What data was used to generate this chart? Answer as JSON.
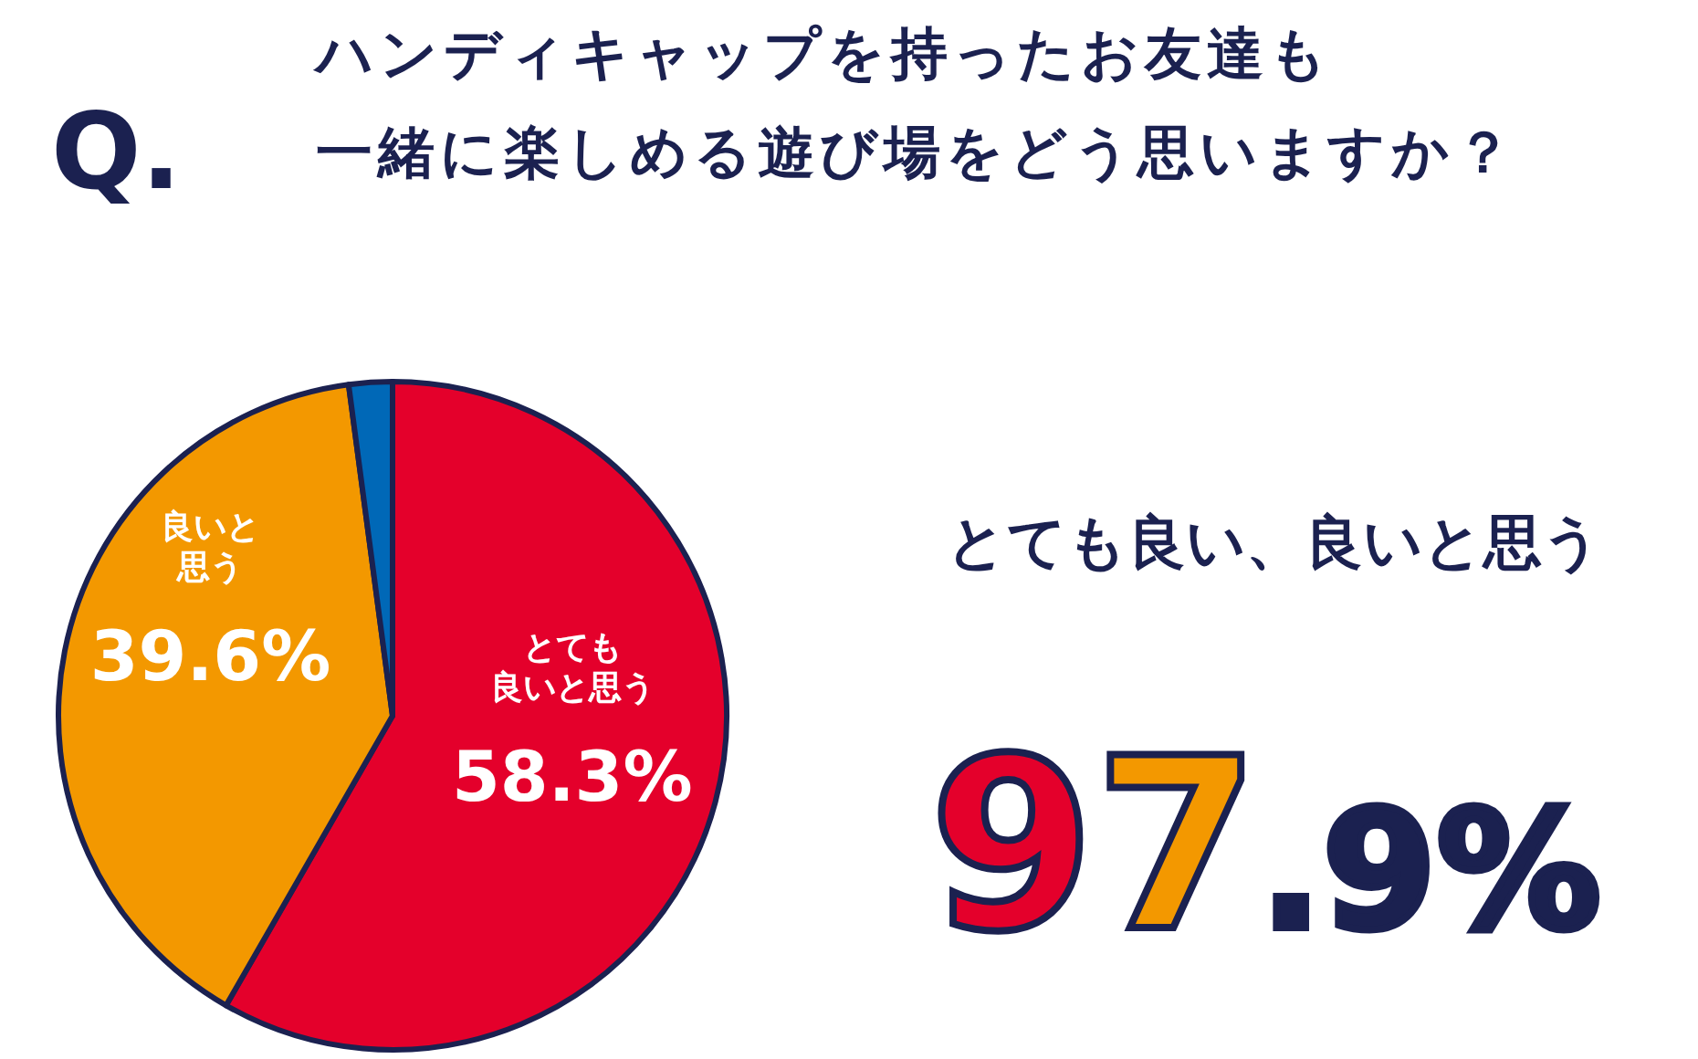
{
  "chart_data": {
    "type": "pie",
    "title": "ハンディキャップを持ったお友達も一緒に楽しめる遊び場をどう思いますか？",
    "categories": [
      "とても良いと思う",
      "良いと思う",
      null
    ],
    "values": [
      58.3,
      39.6,
      2.1
    ],
    "colors": [
      "#e4002b",
      "#f39800",
      "#0068b7"
    ],
    "value_labels": [
      "58.3%",
      "39.6%",
      null
    ],
    "annotations": [
      "Q.",
      "とても良い、良いと思う",
      "97.9%"
    ]
  }
}
